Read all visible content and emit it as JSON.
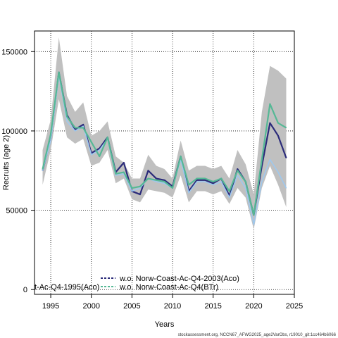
{
  "chart_data": {
    "type": "line",
    "xlabel": "Years",
    "ylabel": "Recruits (age 2)",
    "xlim": [
      1993,
      2025
    ],
    "ylim": [
      -3000,
      163000
    ],
    "x_ticks": [
      1995,
      2000,
      2005,
      2010,
      2015,
      2020,
      2025
    ],
    "y_ticks": [
      0,
      50000,
      100000,
      150000
    ],
    "grid": true,
    "legend_position": "bottom-left",
    "x": [
      1994,
      1995,
      1996,
      1997,
      1998,
      1999,
      2000,
      2001,
      2002,
      2003,
      2004,
      2005,
      2006,
      2007,
      2008,
      2009,
      2010,
      2011,
      2012,
      2013,
      2014,
      2015,
      2016,
      2017,
      2018,
      2019,
      2020,
      2021,
      2022,
      2023,
      2024
    ],
    "band": {
      "lower": [
        66000,
        88000,
        120000,
        96000,
        92000,
        95000,
        78000,
        80000,
        88000,
        67000,
        70000,
        57000,
        55000,
        63000,
        62000,
        61000,
        58000,
        72000,
        55000,
        62000,
        62000,
        60000,
        62000,
        54000,
        64000,
        58000,
        38000,
        64000,
        78000,
        66000,
        52000
      ],
      "upper": [
        88000,
        107000,
        159000,
        122000,
        112000,
        118000,
        97000,
        100000,
        106000,
        84000,
        80000,
        70000,
        70000,
        85000,
        78000,
        76000,
        70000,
        94000,
        75000,
        78000,
        78000,
        76000,
        78000,
        70000,
        88000,
        79000,
        60000,
        112000,
        141000,
        138000,
        133000
      ]
    },
    "series": [
      {
        "name": "",
        "color": "#2b2b7a",
        "width": 2.2,
        "values": [
          75000,
          95000,
          137000,
          110000,
          101000,
          104000,
          86000,
          89000,
          96000,
          74000,
          80000,
          62000,
          60000,
          75000,
          70000,
          69000,
          65000,
          84000,
          62000,
          69000,
          69000,
          67000,
          70000,
          59000,
          76000,
          68000,
          47000,
          78000,
          105000,
          97000,
          83000
        ]
      },
      {
        "name": "",
        "color": "#9ec8ee",
        "width": 1.6,
        "values": [
          75000,
          94000,
          135000,
          106000,
          100000,
          103000,
          85000,
          88000,
          95000,
          72000,
          73000,
          62000,
          64000,
          70000,
          68000,
          67000,
          64000,
          82000,
          61000,
          68000,
          68000,
          66000,
          68000,
          58000,
          72000,
          64000,
          41000,
          68000,
          82000,
          74000,
          64000
        ]
      },
      {
        "name": "",
        "color": "#55b895",
        "width": 2.2,
        "values": [
          76000,
          98000,
          137000,
          109000,
          102000,
          102000,
          93000,
          84000,
          96000,
          73000,
          74000,
          64000,
          65000,
          70000,
          69000,
          68000,
          64000,
          84000,
          66000,
          70000,
          70000,
          68000,
          70000,
          62000,
          75000,
          68000,
          47000,
          82000,
          117000,
          105000,
          102000
        ]
      }
    ],
    "legend": [
      {
        "label": "t-Ac-Q4-1995(Aco)"
      },
      {
        "label": "w.o. Norw-Coast-Ac-Q4-2003(Aco)",
        "color": "#2b2b7a",
        "dash": "3,2"
      },
      {
        "label": "w.o. Norw-Coast-Ac-Q4(BTr)",
        "color": "#55b895",
        "dash": "3,2"
      }
    ],
    "band_color": "#c0c0c0"
  },
  "footer": "stockassessment.org, NCCN67_AFWG2025_age2VarObs, r19010_git:1cc464b6066"
}
